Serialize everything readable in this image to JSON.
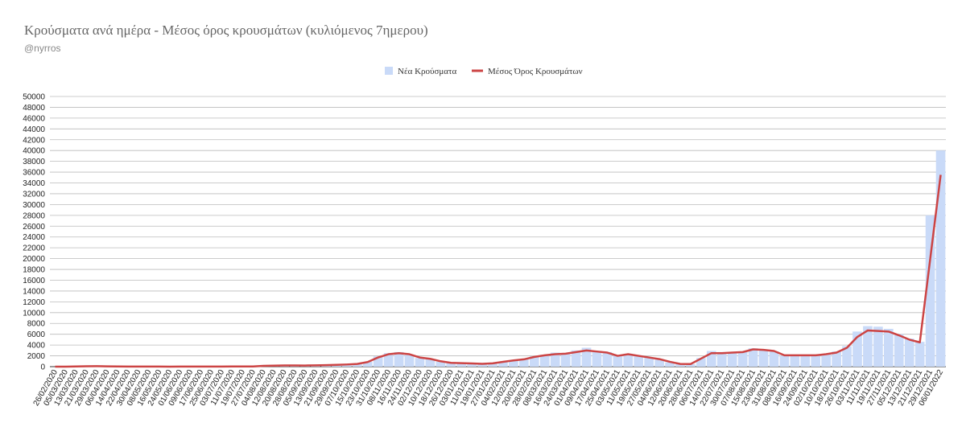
{
  "chart_data": {
    "type": "bar-line",
    "title": "Κρούσματα ανά ημέρα - Μέσος όρος κρουσμάτων (κυλιόμενος 7ημερου)",
    "subtitle": "@nyrros",
    "categories": [
      "26/02/2020",
      "05/03/2020",
      "13/03/2020",
      "21/03/2020",
      "29/03/2020",
      "06/04/2020",
      "14/04/2020",
      "22/04/2020",
      "30/04/2020",
      "08/05/2020",
      "16/05/2020",
      "24/05/2020",
      "01/06/2020",
      "09/06/2020",
      "17/06/2020",
      "25/06/2020",
      "03/07/2020",
      "11/07/2020",
      "19/07/2020",
      "27/07/2020",
      "04/08/2020",
      "12/08/2020",
      "20/08/2020",
      "28/08/2020",
      "05/09/2020",
      "13/09/2020",
      "21/09/2020",
      "29/09/2020",
      "07/10/2020",
      "15/10/2020",
      "23/10/2020",
      "31/10/2020",
      "08/11/2020",
      "16/11/2020",
      "24/11/2020",
      "02/12/2020",
      "10/12/2020",
      "18/12/2020",
      "26/12/2020",
      "03/01/2021",
      "11/01/2021",
      "19/01/2021",
      "27/01/2021",
      "04/02/2021",
      "12/02/2021",
      "20/02/2021",
      "28/02/2021",
      "08/03/2021",
      "16/03/2021",
      "24/03/2021",
      "01/04/2021",
      "09/04/2021",
      "17/04/2021",
      "25/04/2021",
      "03/05/2021",
      "11/05/2021",
      "19/05/2021",
      "27/05/2021",
      "04/06/2021",
      "12/06/2021",
      "20/06/2021",
      "28/06/2021",
      "06/07/2021",
      "14/07/2021",
      "22/07/2021",
      "30/07/2021",
      "07/08/2021",
      "15/08/2021",
      "23/08/2021",
      "31/08/2021",
      "08/09/2021",
      "16/09/2021",
      "24/09/2021",
      "02/10/2021",
      "10/10/2021",
      "18/10/2021",
      "26/10/2021",
      "03/11/2021",
      "11/11/2021",
      "19/11/2021",
      "27/11/2021",
      "05/12/2021",
      "13/12/2021",
      "21/12/2021",
      "29/12/2021",
      "06/01/2022"
    ],
    "series": [
      {
        "name": "Νέα Κρούσματα",
        "color": "#c9daf8",
        "kind": "bar",
        "values": [
          0,
          10,
          40,
          80,
          90,
          60,
          30,
          20,
          15,
          10,
          10,
          5,
          10,
          15,
          10,
          20,
          25,
          30,
          30,
          40,
          150,
          200,
          250,
          220,
          200,
          250,
          300,
          350,
          400,
          500,
          900,
          1900,
          2500,
          2700,
          2200,
          1600,
          1400,
          900,
          700,
          700,
          600,
          500,
          650,
          950,
          1200,
          1400,
          1900,
          2200,
          2600,
          2500,
          3000,
          3500,
          2900,
          2700,
          2100,
          2400,
          2100,
          1700,
          1300,
          800,
          500,
          450,
          1600,
          2900,
          2700,
          2700,
          2800,
          3400,
          3100,
          2800,
          2000,
          2100,
          2100,
          2100,
          2300,
          2800,
          3800,
          6500,
          7500,
          7400,
          7000,
          6000,
          5200,
          4600,
          28000,
          40000
        ]
      },
      {
        "name": "Μέσος Όρος Κρουσμάτων",
        "color": "#cc4444",
        "kind": "line",
        "values": [
          0,
          5,
          30,
          70,
          85,
          65,
          35,
          20,
          15,
          10,
          10,
          6,
          10,
          14,
          12,
          18,
          22,
          28,
          30,
          40,
          140,
          190,
          230,
          220,
          210,
          240,
          280,
          330,
          400,
          500,
          850,
          1700,
          2300,
          2500,
          2300,
          1700,
          1450,
          1000,
          700,
          650,
          600,
          520,
          620,
          900,
          1150,
          1350,
          1800,
          2100,
          2300,
          2400,
          2700,
          3000,
          2800,
          2600,
          2000,
          2300,
          2000,
          1700,
          1400,
          900,
          500,
          480,
          1500,
          2500,
          2500,
          2600,
          2700,
          3200,
          3100,
          2900,
          2100,
          2100,
          2100,
          2100,
          2300,
          2600,
          3500,
          5500,
          6700,
          6600,
          6500,
          5800,
          5000,
          4500,
          20000,
          35500
        ]
      }
    ],
    "ylim": [
      0,
      50000
    ],
    "yticks": [
      0,
      2000,
      4000,
      6000,
      8000,
      10000,
      12000,
      14000,
      16000,
      18000,
      20000,
      22000,
      24000,
      26000,
      28000,
      30000,
      32000,
      34000,
      36000,
      38000,
      40000,
      42000,
      44000,
      46000,
      48000,
      50000
    ],
    "grid": true,
    "legend": "top"
  }
}
